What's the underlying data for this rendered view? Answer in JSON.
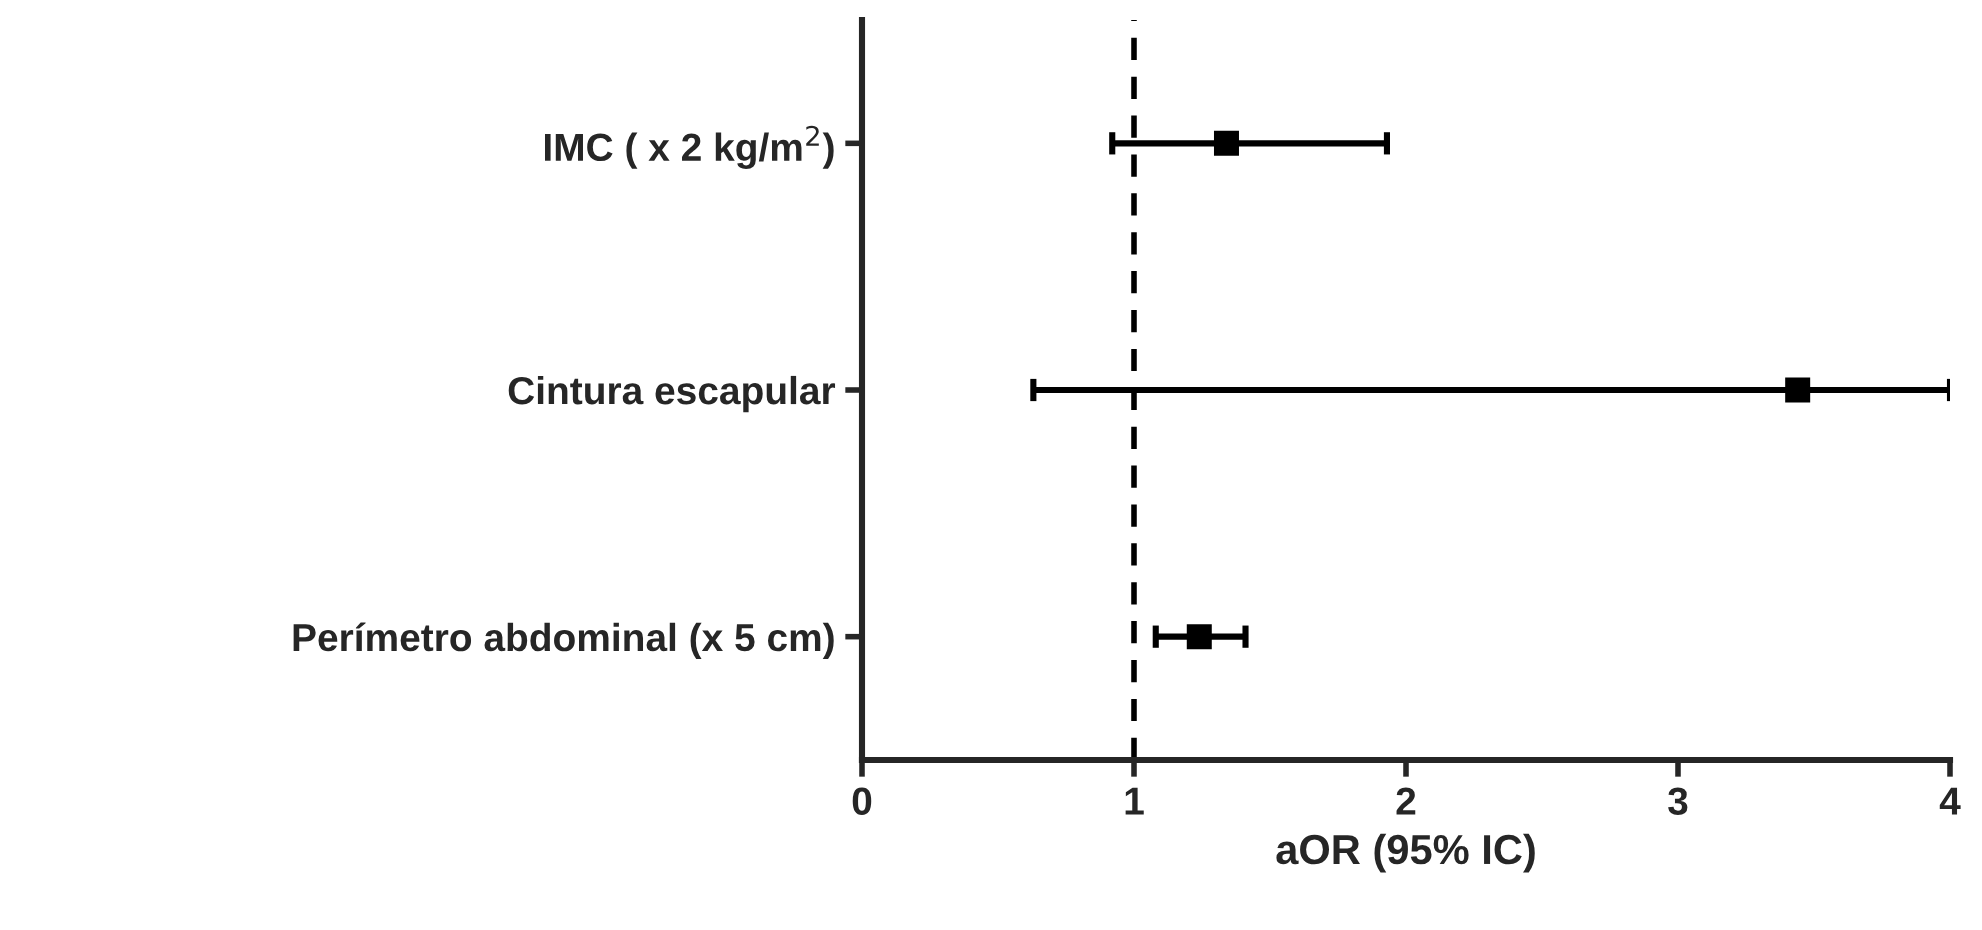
{
  "chart_data": {
    "type": "scatter",
    "orientation": "horizontal",
    "categories": [
      "IMC ( x 2 kg/m$^{2}$)",
      "Cintura escapular",
      "Perímetro abdominal (x 5 cm)"
    ],
    "values": [
      1.34,
      3.44,
      1.24
    ],
    "errors": [
      [
        0.92,
        1.93
      ],
      [
        0.63,
        4
      ],
      [
        1.08,
        1.41
      ]
    ],
    "color": "#000000",
    "marker": "square",
    "xlabel": "aOR (95% IC)",
    "xlim": [
      0,
      4
    ],
    "xticks": [
      0,
      1,
      2,
      3,
      4
    ],
    "ref_lines": [
      {
        "axis": "x",
        "value": 1,
        "line_style": "dashed",
        "color": "#000000"
      }
    ],
    "grid": false,
    "legend": false
  }
}
